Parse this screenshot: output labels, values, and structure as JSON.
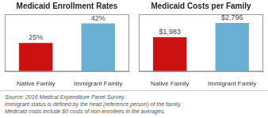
{
  "chart_data": [
    {
      "type": "bar",
      "title": "Medicaid Enrollment Rates",
      "categories": [
        "Native Family",
        "Immigrant Family"
      ],
      "values": [
        25,
        42
      ],
      "value_labels": [
        "25%",
        "42%"
      ],
      "colors": [
        "#cc1111",
        "#6aafd4"
      ],
      "ylim": [
        0,
        50
      ],
      "yticks": [],
      "grid": false,
      "data_labels": true,
      "tick_labels": "x"
    },
    {
      "type": "bar",
      "title": "Medicaid Costs per Family",
      "categories": [
        "Native Family",
        "Immigrant Family"
      ],
      "values": [
        1983,
        2796
      ],
      "value_labels": [
        "$1,983",
        "$2,796"
      ],
      "colors": [
        "#cc1111",
        "#6aafd4"
      ],
      "ylim": [
        0,
        3300
      ],
      "yticks": [],
      "grid": false,
      "data_labels": true,
      "tick_labels": "x"
    }
  ],
  "annotations": [
    "Source: 2016 Medical Expenditure Panel Survey.",
    "Immigrant status is defined by the head (reference person) of the family.",
    "Medicaid costs include $0 costs of non-enrollees in the averages."
  ]
}
